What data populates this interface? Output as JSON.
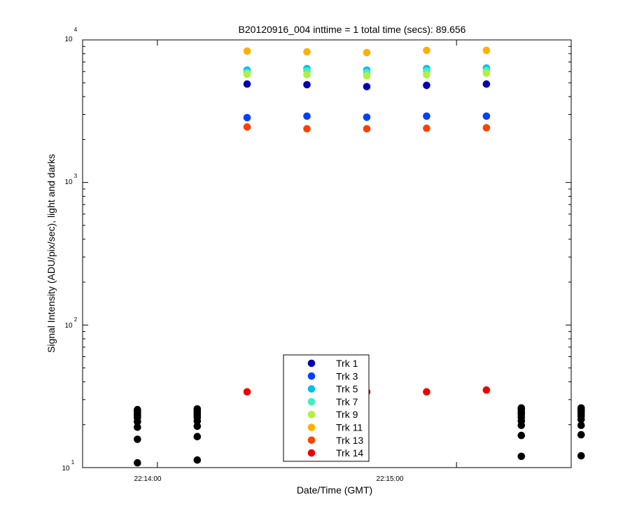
{
  "chart_data": {
    "type": "scatter",
    "title": "B20120916_004 inttime = 1 total time (secs): 89.656",
    "xlabel": "Date/Time (GMT)",
    "ylabel": "Signal Intensity (ADU/pix/sec), light and darks",
    "y_scale": "log",
    "ylim": [
      10,
      10000
    ],
    "xlim": [
      "22:13:45",
      "22:15:23"
    ],
    "x_tick_labels": [
      "22:14:00",
      "22:15:00"
    ],
    "y_tick_labels": [
      {
        "base": "10",
        "exp": "1"
      },
      {
        "base": "10",
        "exp": "2"
      },
      {
        "base": "10",
        "exp": "3"
      },
      {
        "base": "10",
        "exp": "4"
      }
    ],
    "grid": false,
    "legend_position": "bottom-center",
    "light_times": [
      "22:14:18",
      "22:14:30",
      "22:14:42",
      "22:14:54",
      "22:15:06"
    ],
    "series": [
      {
        "name": "Trk 1",
        "color": "#0000B0",
        "values": [
          4900,
          4850,
          4700,
          4800,
          4900
        ]
      },
      {
        "name": "Trk 3",
        "color": "#0040FF",
        "values": [
          2850,
          2920,
          2870,
          2920,
          2920
        ]
      },
      {
        "name": "Trk 5",
        "color": "#00C0F0",
        "values": [
          6150,
          6300,
          6150,
          6300,
          6350
        ]
      },
      {
        "name": "Trk 7",
        "color": "#40F0C0",
        "values": [
          5900,
          6050,
          5900,
          6050,
          6100
        ]
      },
      {
        "name": "Trk 9",
        "color": "#B0F040",
        "values": [
          5750,
          5700,
          5600,
          5700,
          5850
        ]
      },
      {
        "name": "Trk 11",
        "color": "#FFB000",
        "values": [
          8350,
          8250,
          8150,
          8450,
          8450
        ]
      },
      {
        "name": "Trk 13",
        "color": "#FF4000",
        "values": [
          2450,
          2380,
          2380,
          2400,
          2420
        ]
      },
      {
        "name": "Trk 14",
        "color": "#F00000",
        "values": [
          34,
          34,
          34,
          34,
          35
        ]
      }
    ],
    "darks": {
      "color": "#000000",
      "groups": [
        {
          "time": "22:13:56",
          "values": [
            25.5,
            24.8,
            24,
            23.2,
            22.4,
            21,
            19.2,
            15.8,
            10.8
          ]
        },
        {
          "time": "22:14:08",
          "values": [
            25.8,
            25,
            24.2,
            23.4,
            22.5,
            21.2,
            19.5,
            16.5,
            11.3
          ]
        },
        {
          "time": "22:15:13",
          "values": [
            26.2,
            25.5,
            24.5,
            23.6,
            22.5,
            21.2,
            19.8,
            16.8,
            12
          ]
        },
        {
          "time": "22:15:25",
          "values": [
            26.2,
            25.5,
            24.8,
            24,
            23,
            21.8,
            19.8,
            17,
            12.1
          ]
        }
      ]
    }
  }
}
